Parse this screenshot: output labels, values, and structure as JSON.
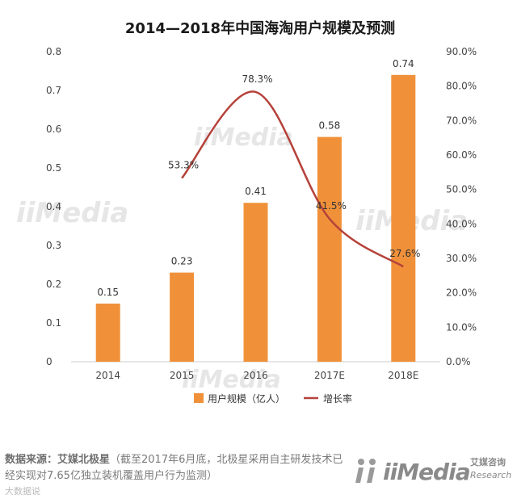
{
  "chart_data": {
    "type": "bar",
    "title": "2014—2018年中国海淘用户规模及预测",
    "categories": [
      "2014",
      "2015",
      "2016",
      "2017E",
      "2018E"
    ],
    "series": [
      {
        "name": "用户规模（亿人）",
        "type": "bar",
        "axis": "left",
        "color": "#f0913a",
        "values": [
          0.15,
          0.23,
          0.41,
          0.58,
          0.74
        ],
        "labels": [
          "0.15",
          "0.23",
          "0.41",
          "0.58",
          "0.74"
        ]
      },
      {
        "name": "增长率",
        "type": "line",
        "axis": "right",
        "color": "#b5423a",
        "values": [
          null,
          53.3,
          78.3,
          41.5,
          27.6
        ],
        "labels": [
          "",
          "53.3%",
          "78.3%",
          "41.5%",
          "27.6%"
        ]
      }
    ],
    "left_axis": {
      "ylim": [
        0,
        0.8
      ],
      "ticks": [
        "0",
        "0.1",
        "0.2",
        "0.3",
        "0.4",
        "0.5",
        "0.6",
        "0.7",
        "0.8"
      ]
    },
    "right_axis": {
      "ylim": [
        0,
        90
      ],
      "ticks": [
        "0.0%",
        "10.0%",
        "20.0%",
        "30.0%",
        "40.0%",
        "50.0%",
        "60.0%",
        "70.0%",
        "80.0%",
        "90.0%"
      ]
    },
    "grid": false,
    "legend": "bottom"
  },
  "footer": {
    "source_label": "数据来源：艾媒北极星",
    "source_note": "（截至2017年6月底，北极星采用自主研发技术已经实现对7.65亿独立装机覆盖用户行为监测）"
  },
  "brand": {
    "name": "iiMedia",
    "cn": "艾媒咨询",
    "en": "Research"
  },
  "watermark": "iiMedia",
  "wechat": "大数据说"
}
